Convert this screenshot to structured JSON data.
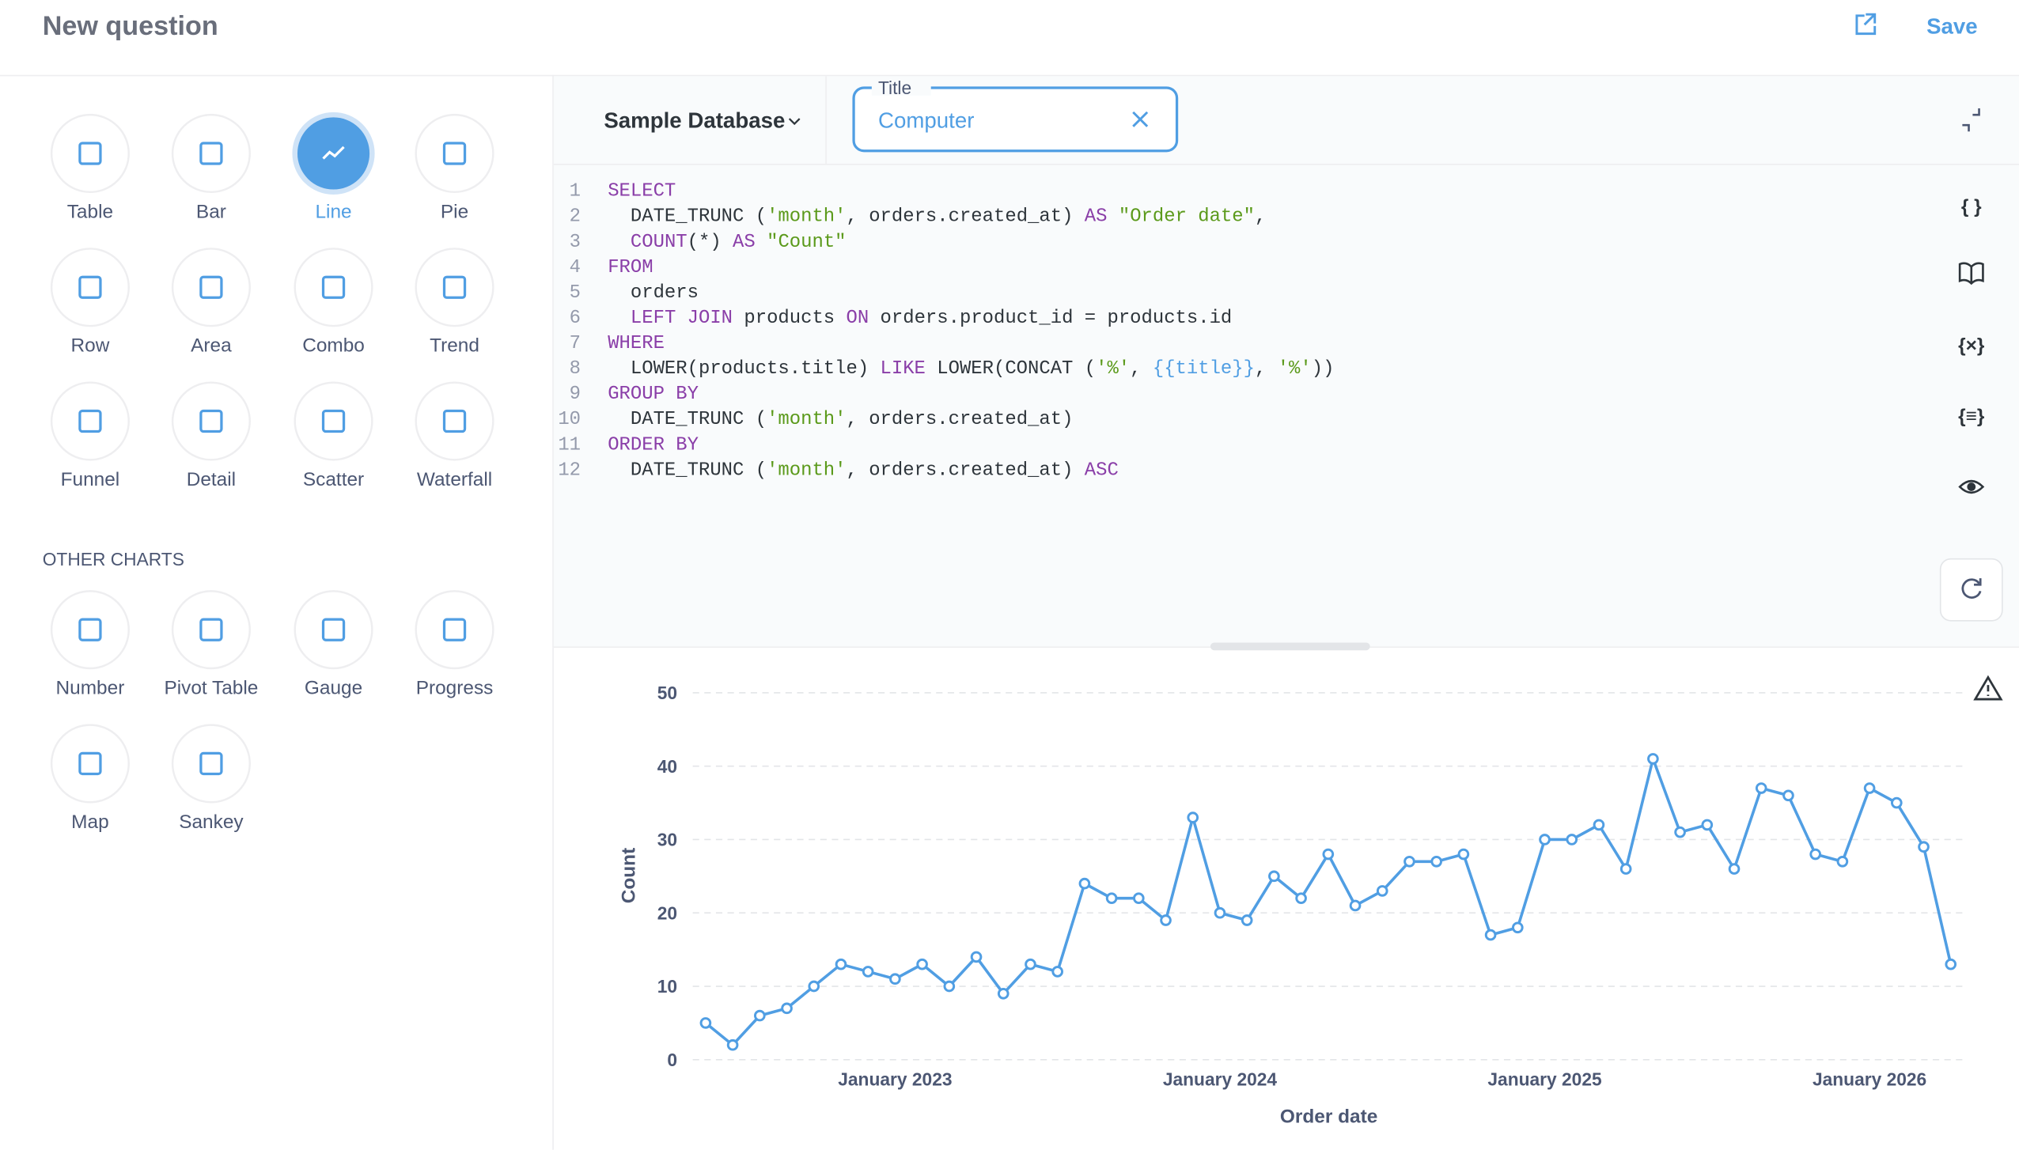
{
  "header": {
    "title": "New question",
    "save": "Save"
  },
  "sidebar": {
    "items": [
      "Table",
      "Bar",
      "Line",
      "Pie",
      "Row",
      "Area",
      "Combo",
      "Trend",
      "Funnel",
      "Detail",
      "Scatter",
      "Waterfall"
    ],
    "selected_index": 2,
    "other_heading": "OTHER CHARTS",
    "other_items": [
      "Number",
      "Pivot Table",
      "Gauge",
      "Progress",
      "Map",
      "Sankey"
    ]
  },
  "editor": {
    "database": "Sample Database",
    "field_label": "Title",
    "field_value": "Computer",
    "lines": [
      {
        "number": 1,
        "tokens": [
          {
            "text": "SELECT",
            "color": "#8a3ea8"
          }
        ]
      },
      {
        "number": 2,
        "tokens": [
          {
            "text": "  DATE_TRUNC (",
            "color": "#2e353b"
          },
          {
            "text": "'month'",
            "color": "#5b9a1b"
          },
          {
            "text": ", orders.created_at) ",
            "color": "#2e353b"
          },
          {
            "text": "AS",
            "color": "#8a3ea8"
          },
          {
            "text": " ",
            "color": "#2e353b"
          },
          {
            "text": "\"Order date\"",
            "color": "#5b9a1b"
          },
          {
            "text": ",",
            "color": "#2e353b"
          }
        ]
      },
      {
        "number": 3,
        "tokens": [
          {
            "text": "  ",
            "color": "#2e353b"
          },
          {
            "text": "COUNT",
            "color": "#8a3ea8"
          },
          {
            "text": "(*) ",
            "color": "#2e353b"
          },
          {
            "text": "AS",
            "color": "#8a3ea8"
          },
          {
            "text": " ",
            "color": "#2e353b"
          },
          {
            "text": "\"Count\"",
            "color": "#5b9a1b"
          }
        ]
      },
      {
        "number": 4,
        "tokens": [
          {
            "text": "FROM",
            "color": "#8a3ea8"
          }
        ]
      },
      {
        "number": 5,
        "tokens": [
          {
            "text": "  orders",
            "color": "#2e353b"
          }
        ]
      },
      {
        "number": 6,
        "tokens": [
          {
            "text": "  ",
            "color": "#2e353b"
          },
          {
            "text": "LEFT JOIN",
            "color": "#8a3ea8"
          },
          {
            "text": " products ",
            "color": "#2e353b"
          },
          {
            "text": "ON",
            "color": "#8a3ea8"
          },
          {
            "text": " orders.product_id = products.id",
            "color": "#2e353b"
          }
        ]
      },
      {
        "number": 7,
        "tokens": [
          {
            "text": "WHERE",
            "color": "#8a3ea8"
          }
        ]
      },
      {
        "number": 8,
        "tokens": [
          {
            "text": "  LOWER(products.title) ",
            "color": "#2e353b"
          },
          {
            "text": "LIKE",
            "color": "#8a3ea8"
          },
          {
            "text": " LOWER(CONCAT (",
            "color": "#2e353b"
          },
          {
            "text": "'%'",
            "color": "#5b9a1b"
          },
          {
            "text": ", ",
            "color": "#2e353b"
          },
          {
            "text": "{{title}}",
            "color": "#509ee3"
          },
          {
            "text": ", ",
            "color": "#2e353b"
          },
          {
            "text": "'%'",
            "color": "#5b9a1b"
          },
          {
            "text": "))",
            "color": "#2e353b"
          }
        ]
      },
      {
        "number": 9,
        "tokens": [
          {
            "text": "GROUP BY",
            "color": "#8a3ea8"
          }
        ]
      },
      {
        "number": 10,
        "tokens": [
          {
            "text": "  DATE_TRUNC (",
            "color": "#2e353b"
          },
          {
            "text": "'month'",
            "color": "#5b9a1b"
          },
          {
            "text": ", orders.created_at)",
            "color": "#2e353b"
          }
        ]
      },
      {
        "number": 11,
        "tokens": [
          {
            "text": "ORDER BY",
            "color": "#8a3ea8"
          }
        ]
      },
      {
        "number": 12,
        "tokens": [
          {
            "text": "  DATE_TRUNC (",
            "color": "#2e353b"
          },
          {
            "text": "'month'",
            "color": "#5b9a1b"
          },
          {
            "text": ", orders.created_at) ",
            "color": "#2e353b"
          },
          {
            "text": "ASC",
            "color": "#8a3ea8"
          }
        ]
      }
    ]
  },
  "chart_data": {
    "type": "line",
    "x_label": "Order date",
    "y_label": "Count",
    "x": [
      "2022-06",
      "2022-07",
      "2022-08",
      "2022-09",
      "2022-10",
      "2022-11",
      "2022-12",
      "2023-01",
      "2023-02",
      "2023-03",
      "2023-04",
      "2023-05",
      "2023-06",
      "2023-07",
      "2023-08",
      "2023-09",
      "2023-10",
      "2023-11",
      "2023-12",
      "2024-01",
      "2024-02",
      "2024-03",
      "2024-04",
      "2024-05",
      "2024-06",
      "2024-07",
      "2024-08",
      "2024-09",
      "2024-10",
      "2024-11",
      "2024-12",
      "2025-01",
      "2025-02",
      "2025-03",
      "2025-04",
      "2025-05",
      "2025-06",
      "2025-07",
      "2025-08",
      "2025-09",
      "2025-10",
      "2025-11",
      "2025-12",
      "2026-01",
      "2026-02",
      "2026-03",
      "2026-04"
    ],
    "series": [
      {
        "name": "Count",
        "color": "#509ee3",
        "values": [
          5,
          2,
          6,
          7,
          10,
          13,
          12,
          11,
          13,
          10,
          14,
          9,
          13,
          12,
          24,
          22,
          22,
          19,
          33,
          20,
          19,
          25,
          22,
          28,
          21,
          23,
          27,
          27,
          28,
          17,
          18,
          30,
          30,
          32,
          26,
          41,
          31,
          32,
          26,
          37,
          36,
          28,
          27,
          37,
          35,
          29,
          13
        ]
      }
    ],
    "xlim": [
      "2022-06",
      "2026-04"
    ],
    "xticks": [
      {
        "value": "2023-01",
        "label": "January 2023"
      },
      {
        "value": "2024-01",
        "label": "January 2024"
      },
      {
        "value": "2025-01",
        "label": "January 2025"
      },
      {
        "value": "2026-01",
        "label": "January 2026"
      }
    ],
    "ylim": [
      0,
      50
    ],
    "yticks": [
      0,
      10,
      20,
      30,
      40,
      50
    ],
    "grid": true
  }
}
